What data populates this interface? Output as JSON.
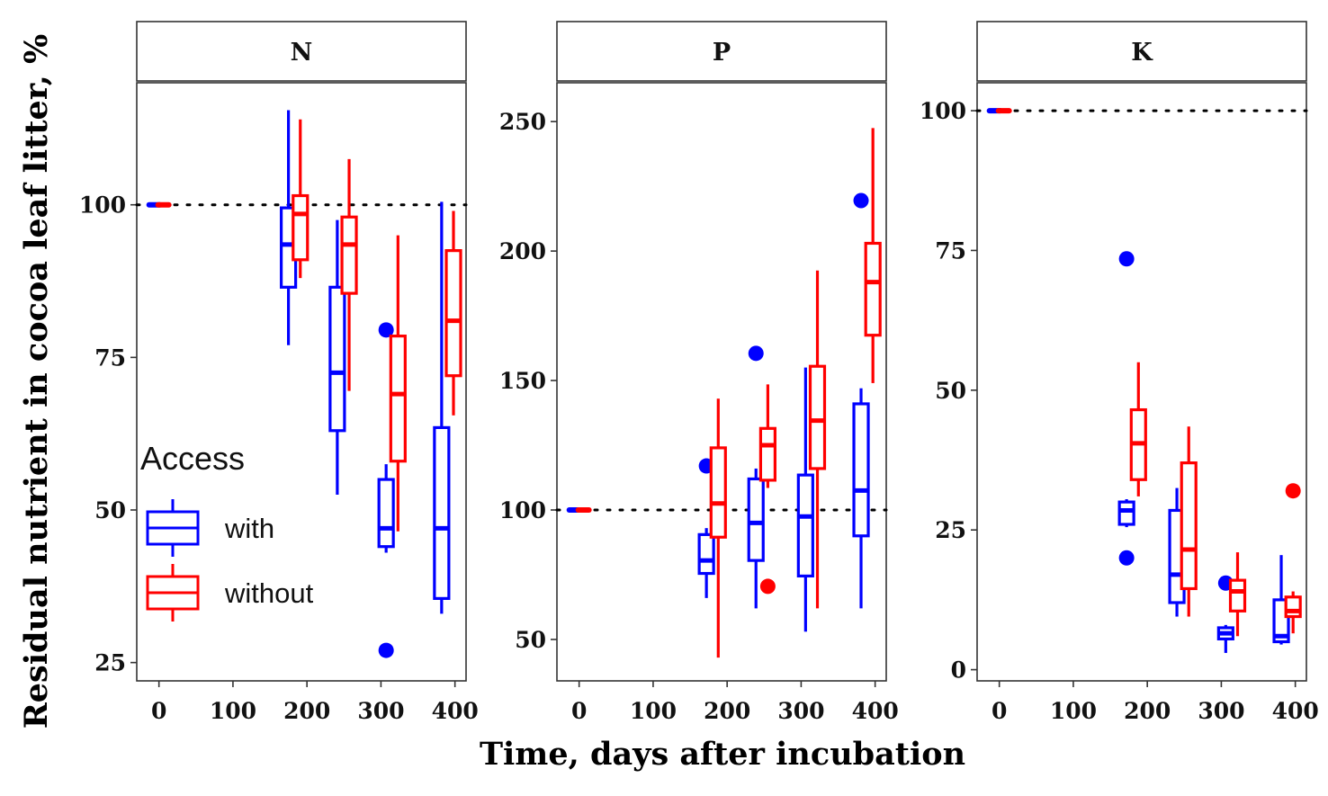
{
  "chart_data": {
    "type": "boxplot",
    "facets": [
      "N",
      "P",
      "K"
    ],
    "xlabel": "Time, days after incubation",
    "ylabel": "Residual nutrient in cocoa leaf litter, %",
    "x_ticks": [
      0,
      100,
      200,
      300,
      400
    ],
    "xlim": [
      -30,
      415
    ],
    "reference_line_y": 100,
    "legend": {
      "title": "Access",
      "placement": "left-inside-first-panel",
      "entries": [
        {
          "name": "with",
          "color": "#0000FF"
        },
        {
          "name": "without",
          "color": "#FF0000"
        }
      ]
    },
    "panels": [
      {
        "facet": "N",
        "ylim": [
          22,
          120
        ],
        "y_ticks": [
          25,
          50,
          75,
          100
        ],
        "boxes": [
          {
            "series": "with",
            "x": 0,
            "min": 100,
            "q1": 100,
            "median": 100,
            "q3": 100,
            "max": 100,
            "outliers": []
          },
          {
            "series": "without",
            "x": 0,
            "min": 100,
            "q1": 100,
            "median": 100,
            "q3": 100,
            "max": 100,
            "outliers": []
          },
          {
            "series": "with",
            "x": 175,
            "min": 77,
            "q1": 86.5,
            "median": 93.5,
            "q3": 99.5,
            "max": 115.5,
            "outliers": []
          },
          {
            "series": "without",
            "x": 191,
            "min": 88,
            "q1": 91,
            "median": 98.5,
            "q3": 101.5,
            "max": 114,
            "outliers": []
          },
          {
            "series": "with",
            "x": 241,
            "min": 52.5,
            "q1": 63,
            "median": 72.5,
            "q3": 86.5,
            "max": 97.5,
            "outliers": []
          },
          {
            "series": "without",
            "x": 257,
            "min": 69.5,
            "q1": 85.5,
            "median": 93.5,
            "q3": 98,
            "max": 107.5,
            "outliers": []
          },
          {
            "series": "with",
            "x": 307,
            "min": 43,
            "q1": 44,
            "median": 47,
            "q3": 55,
            "max": 57.5,
            "outliers": [
              79.5,
              27
            ]
          },
          {
            "series": "without",
            "x": 323,
            "min": 46.5,
            "q1": 58,
            "median": 69,
            "q3": 78.5,
            "max": 95,
            "outliers": []
          },
          {
            "series": "with",
            "x": 382,
            "min": 33,
            "q1": 35.5,
            "median": 47,
            "q3": 63.5,
            "max": 100.5,
            "outliers": []
          },
          {
            "series": "without",
            "x": 398,
            "min": 65.5,
            "q1": 72,
            "median": 81,
            "q3": 92.5,
            "max": 99,
            "outliers": []
          }
        ]
      },
      {
        "facet": "P",
        "ylim": [
          34,
          265
        ],
        "y_ticks": [
          50,
          100,
          150,
          200,
          250
        ],
        "boxes": [
          {
            "series": "with",
            "x": 0,
            "min": 100,
            "q1": 100,
            "median": 100,
            "q3": 100,
            "max": 100,
            "outliers": []
          },
          {
            "series": "without",
            "x": 0,
            "min": 100,
            "q1": 100,
            "median": 100,
            "q3": 100,
            "max": 100,
            "outliers": []
          },
          {
            "series": "with",
            "x": 172,
            "min": 66,
            "q1": 75.5,
            "median": 80.5,
            "q3": 90.5,
            "max": 93,
            "outliers": [
              117
            ]
          },
          {
            "series": "without",
            "x": 188,
            "min": 43,
            "q1": 89.5,
            "median": 102.5,
            "q3": 124,
            "max": 143,
            "outliers": []
          },
          {
            "series": "with",
            "x": 239,
            "min": 62,
            "q1": 80.5,
            "median": 95,
            "q3": 112,
            "max": 116,
            "outliers": [
              160.5
            ]
          },
          {
            "series": "without",
            "x": 255,
            "min": 108.5,
            "q1": 111.5,
            "median": 125,
            "q3": 131.5,
            "max": 148.5,
            "outliers": [
              70.5
            ]
          },
          {
            "series": "with",
            "x": 306,
            "min": 53,
            "q1": 74.5,
            "median": 97.5,
            "q3": 113.5,
            "max": 155,
            "outliers": []
          },
          {
            "series": "without",
            "x": 322,
            "min": 62,
            "q1": 116,
            "median": 134.5,
            "q3": 155.5,
            "max": 192.5,
            "outliers": []
          },
          {
            "series": "with",
            "x": 381,
            "min": 62,
            "q1": 90,
            "median": 107.5,
            "q3": 141,
            "max": 147,
            "outliers": [
              219.5
            ]
          },
          {
            "series": "without",
            "x": 397,
            "min": 149,
            "q1": 167.5,
            "median": 188,
            "q3": 203,
            "max": 247.5,
            "outliers": []
          }
        ]
      },
      {
        "facet": "K",
        "ylim": [
          -2,
          105
        ],
        "y_ticks": [
          0,
          25,
          50,
          75,
          100
        ],
        "boxes": [
          {
            "series": "with",
            "x": 0,
            "min": 100,
            "q1": 100,
            "median": 100,
            "q3": 100,
            "max": 100,
            "outliers": []
          },
          {
            "series": "without",
            "x": 0,
            "min": 100,
            "q1": 100,
            "median": 100,
            "q3": 100,
            "max": 100,
            "outliers": []
          },
          {
            "series": "with",
            "x": 172,
            "min": 25.5,
            "q1": 26,
            "median": 28.5,
            "q3": 30,
            "max": 30.5,
            "outliers": [
              73.5,
              20
            ]
          },
          {
            "series": "without",
            "x": 188,
            "min": 31,
            "q1": 34,
            "median": 40.5,
            "q3": 46.5,
            "max": 55,
            "outliers": []
          },
          {
            "series": "with",
            "x": 240,
            "min": 9.5,
            "q1": 12,
            "median": 17,
            "q3": 28.5,
            "max": 32.5,
            "outliers": []
          },
          {
            "series": "without",
            "x": 256,
            "min": 9.5,
            "q1": 14.5,
            "median": 21.5,
            "q3": 37,
            "max": 43.5,
            "outliers": []
          },
          {
            "series": "with",
            "x": 306,
            "min": 3,
            "q1": 5.5,
            "median": 6.5,
            "q3": 7.5,
            "max": 8,
            "outliers": [
              15.5
            ]
          },
          {
            "series": "without",
            "x": 322,
            "min": 6,
            "q1": 10.5,
            "median": 14,
            "q3": 16,
            "max": 21,
            "outliers": []
          },
          {
            "series": "with",
            "x": 381,
            "min": 4.5,
            "q1": 5,
            "median": 6,
            "q3": 12.5,
            "max": 20.5,
            "outliers": []
          },
          {
            "series": "without",
            "x": 397,
            "min": 6.5,
            "q1": 9.5,
            "median": 10.5,
            "q3": 13,
            "max": 14,
            "outliers": [
              32
            ]
          }
        ]
      }
    ]
  }
}
